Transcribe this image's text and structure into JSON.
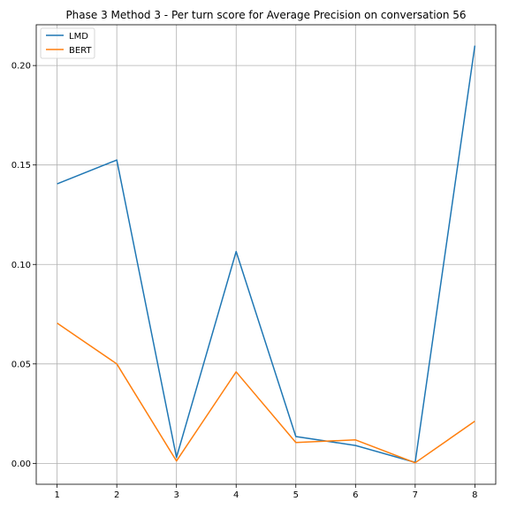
{
  "chart_data": {
    "type": "line",
    "title": "Phase 3 Method 3 - Per turn score for Average Precision on conversation 56",
    "xlabel": "",
    "ylabel": "",
    "x": [
      1,
      2,
      3,
      4,
      5,
      6,
      7,
      8
    ],
    "xticks": [
      "1",
      "2",
      "3",
      "4",
      "5",
      "6",
      "7",
      "8"
    ],
    "yticks": [
      0.0,
      0.05,
      0.1,
      0.15,
      0.2
    ],
    "ytick_labels": [
      "0.00",
      "0.05",
      "0.10",
      "0.15",
      "0.20"
    ],
    "xlim": [
      0.65,
      8.35
    ],
    "ylim": [
      -0.0105,
      0.2205
    ],
    "grid": true,
    "legend_position": "top-left",
    "series": [
      {
        "name": "LMD",
        "color": "#1f77b4",
        "values": [
          0.1405,
          0.1525,
          0.003,
          0.1065,
          0.0135,
          0.009,
          0.0005,
          0.21
        ]
      },
      {
        "name": "BERT",
        "color": "#ff7f0e",
        "values": [
          0.0705,
          0.05,
          0.0012,
          0.046,
          0.0105,
          0.0118,
          0.0003,
          0.0212
        ]
      }
    ]
  }
}
